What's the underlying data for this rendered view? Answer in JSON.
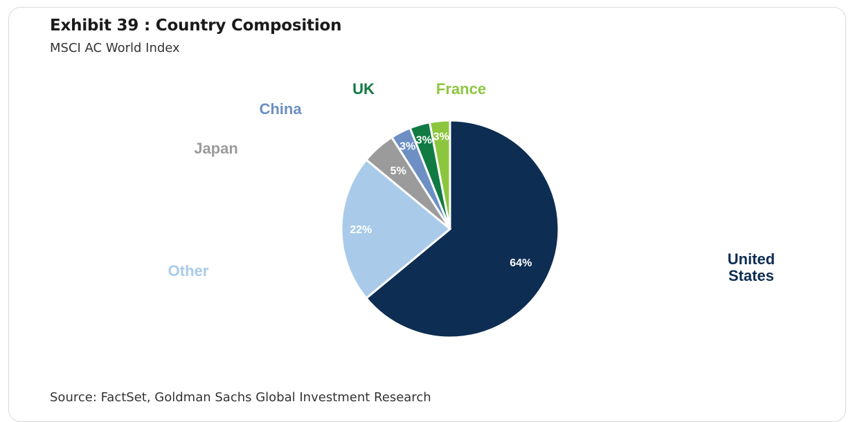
{
  "title": "Exhibit 39 : Country Composition",
  "subtitle": "MSCI AC World Index",
  "source": "Source: FactSet, Goldman Sachs Global Investment Research",
  "chart_data": {
    "type": "pie",
    "title": "Exhibit 39 : Country Composition",
    "subtitle": "MSCI AC World Index",
    "legend": "none",
    "slices": [
      {
        "label": "United States",
        "value": 64,
        "value_label": "64%",
        "color": "#0d2d52"
      },
      {
        "label": "Other",
        "value": 22,
        "value_label": "22%",
        "color": "#a9cbe9"
      },
      {
        "label": "Japan",
        "value": 5,
        "value_label": "5%",
        "color": "#9b9b9b"
      },
      {
        "label": "China",
        "value": 3,
        "value_label": "3%",
        "color": "#6d8fc4"
      },
      {
        "label": "UK",
        "value": 3,
        "value_label": "3%",
        "color": "#117a42"
      },
      {
        "label": "France",
        "value": 3,
        "value_label": "3%",
        "color": "#8cc63f"
      }
    ]
  }
}
